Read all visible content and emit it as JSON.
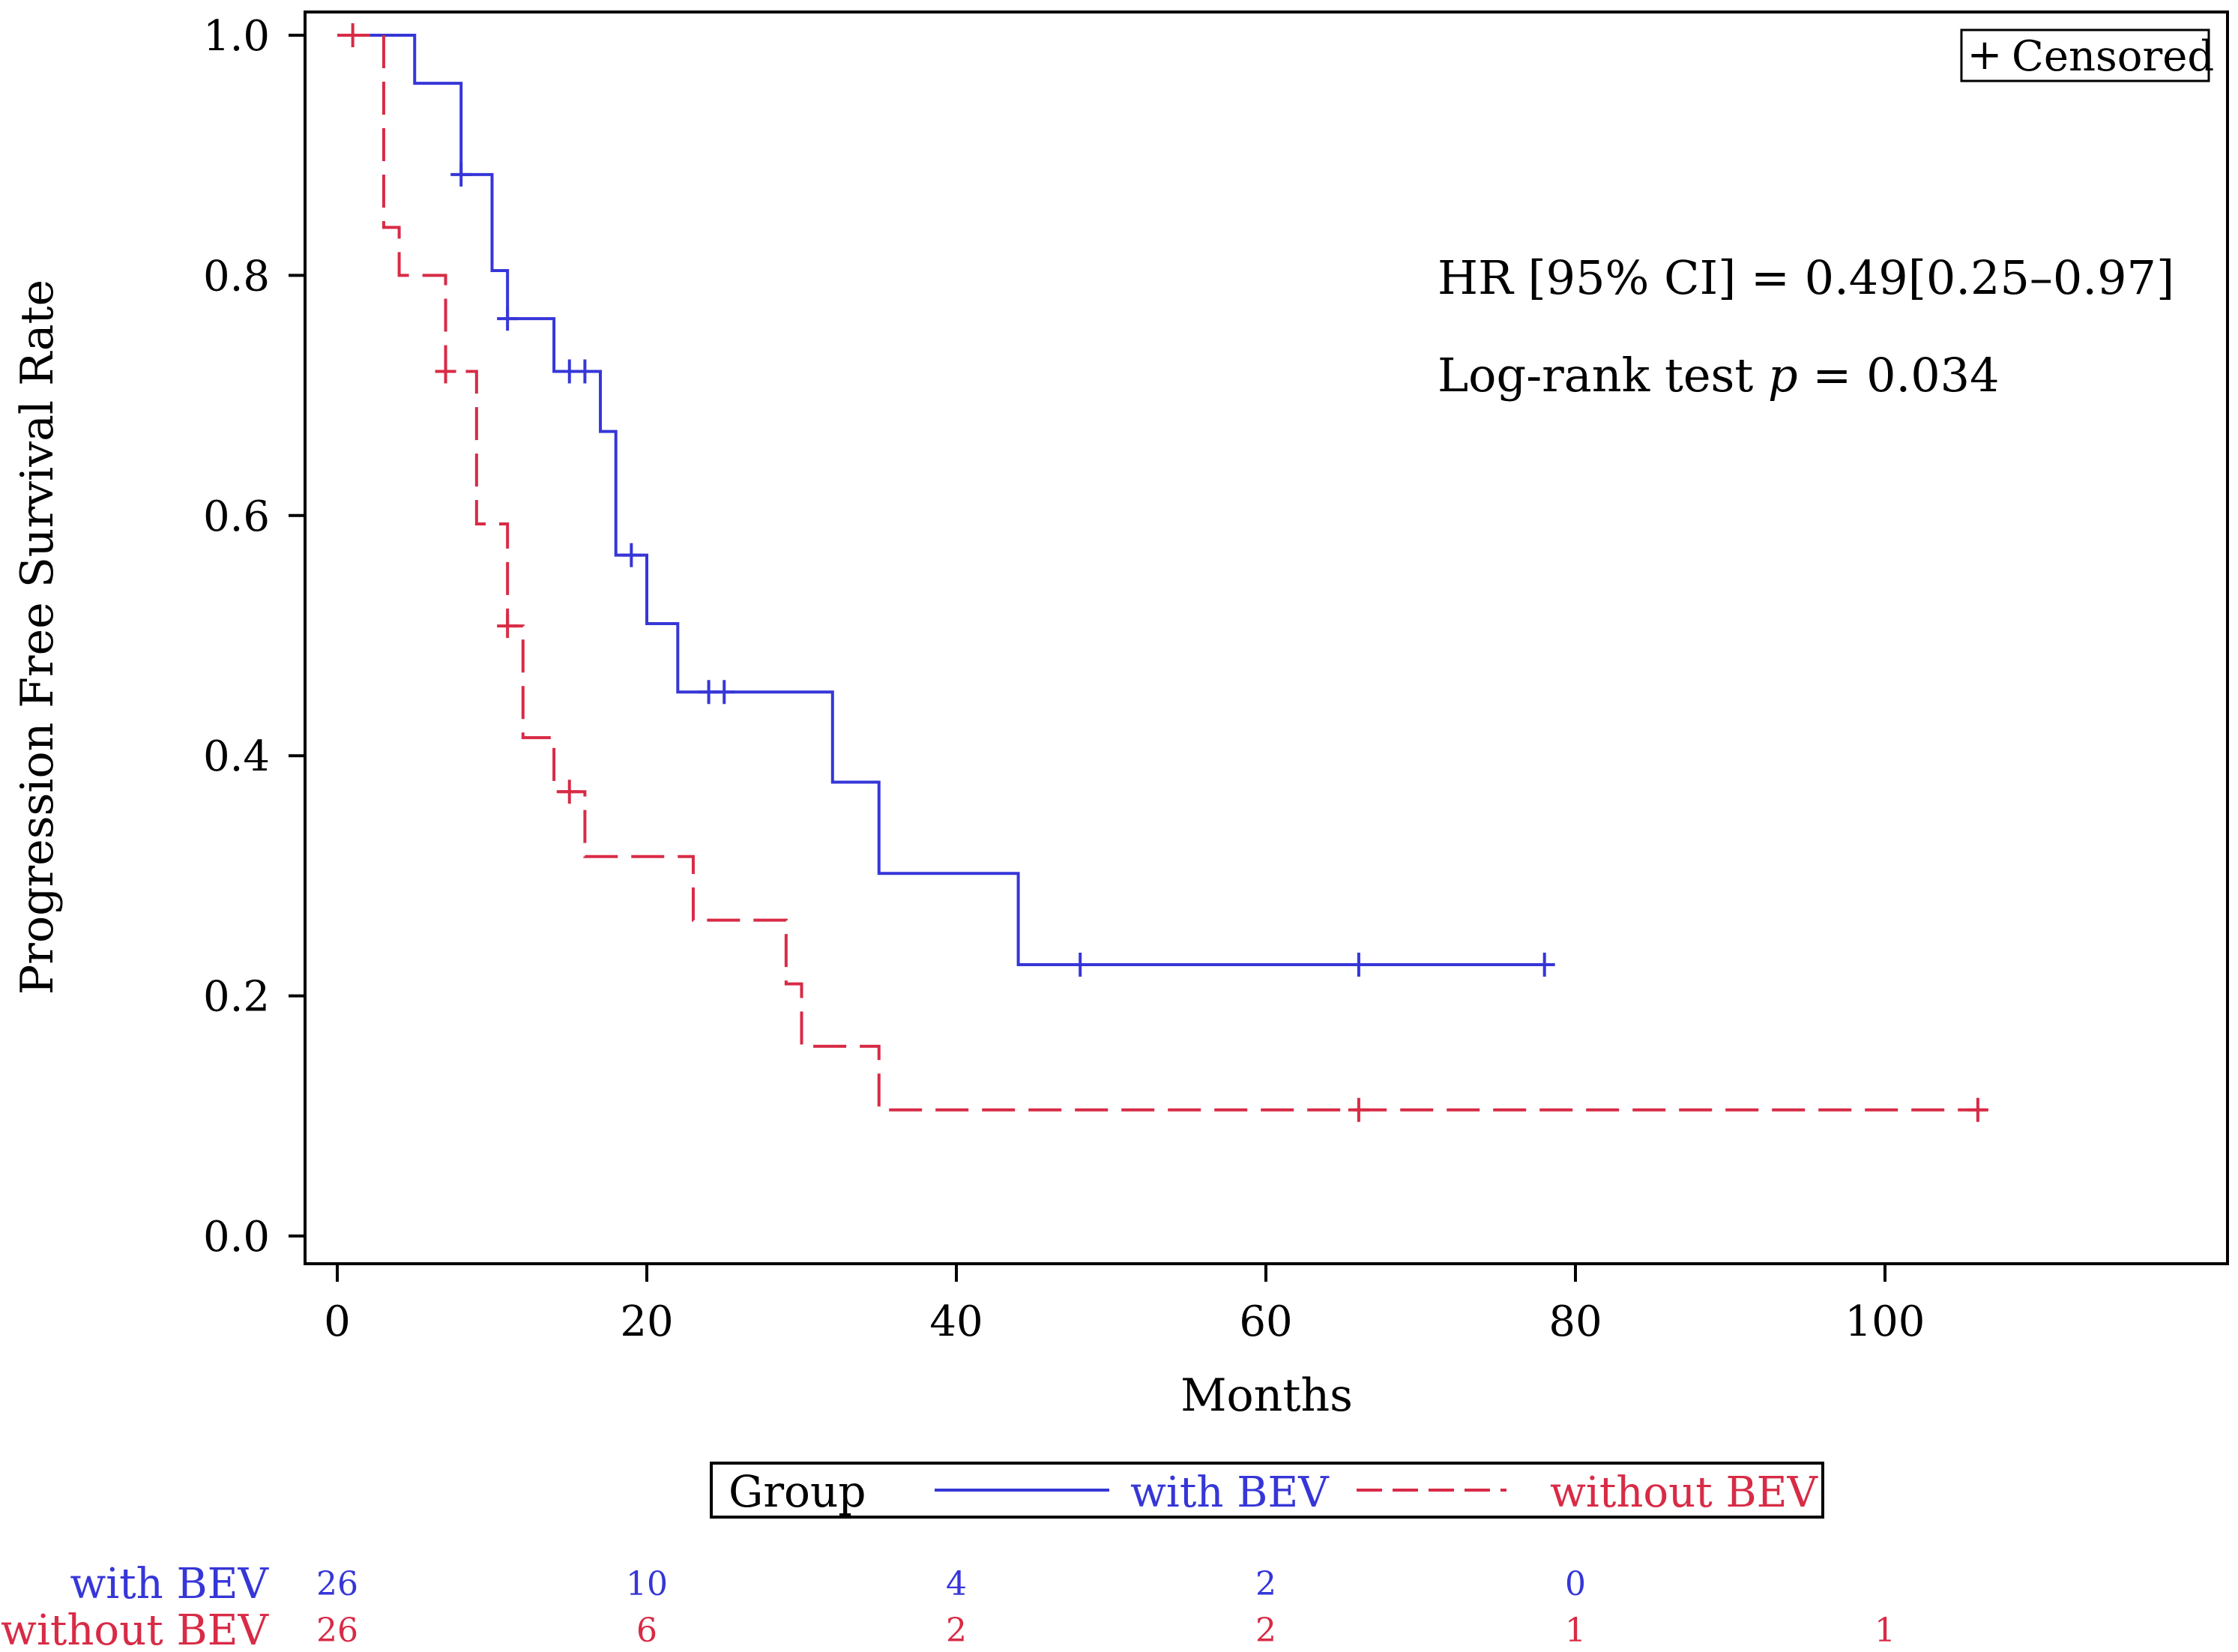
{
  "colors": {
    "with_bev": "#3636d8",
    "without_bev": "#d82b46",
    "axis": "#000000"
  },
  "censored_legend": {
    "symbol": "+",
    "label": "Censored"
  },
  "annotations": {
    "hr_text": "HR [95% CI] = 0.49[0.25–0.97]",
    "logrank_prefix": "Log-rank test ",
    "logrank_p": "p",
    "logrank_suffix": " = 0.034"
  },
  "legend": {
    "title": "Group",
    "entries": [
      "with BEV",
      "without BEV"
    ]
  },
  "at_risk": {
    "times": [
      0,
      20,
      40,
      60,
      80,
      100
    ],
    "rows": [
      {
        "label": "with BEV",
        "counts": [
          "26",
          "10",
          "4",
          "2",
          "0",
          ""
        ]
      },
      {
        "label": "without BEV",
        "counts": [
          "26",
          "6",
          "2",
          "2",
          "1",
          "1"
        ]
      }
    ]
  },
  "chart_data": {
    "type": "line",
    "subtype": "kaplan-meier-step",
    "title": "",
    "xlabel": "Months",
    "ylabel": "Progression Free Survival Rate",
    "xlim": [
      -2,
      122
    ],
    "ylim": [
      0,
      1.02
    ],
    "xticks": [
      0,
      20,
      40,
      60,
      80,
      100
    ],
    "xtick_labels": [
      "0",
      "20",
      "40",
      "60",
      "80",
      "100"
    ],
    "yticks": [
      0.0,
      0.2,
      0.4,
      0.6,
      0.8,
      1.0
    ],
    "ytick_labels": [
      "0.0",
      "0.2",
      "0.4",
      "0.6",
      "0.8",
      "1.0"
    ],
    "grid": false,
    "series": [
      {
        "name": "with BEV",
        "style": "solid",
        "steps": [
          [
            0,
            1.0
          ],
          [
            5,
            0.96
          ],
          [
            8,
            0.884
          ],
          [
            10,
            0.804
          ],
          [
            11,
            0.764
          ],
          [
            14,
            0.72
          ],
          [
            17,
            0.67
          ],
          [
            18,
            0.567
          ],
          [
            20,
            0.51
          ],
          [
            22,
            0.453
          ],
          [
            32,
            0.378
          ],
          [
            35,
            0.302
          ],
          [
            44,
            0.226
          ],
          [
            78.5,
            0.226
          ]
        ],
        "censored": [
          [
            8,
            0.884
          ],
          [
            11,
            0.764
          ],
          [
            15,
            0.72
          ],
          [
            16,
            0.72
          ],
          [
            19,
            0.567
          ],
          [
            24,
            0.453
          ],
          [
            25,
            0.453
          ],
          [
            48,
            0.226
          ],
          [
            66,
            0.226
          ],
          [
            78,
            0.226
          ]
        ]
      },
      {
        "name": "without BEV",
        "style": "dashed",
        "steps": [
          [
            0,
            1.0
          ],
          [
            3,
            0.84
          ],
          [
            4,
            0.8
          ],
          [
            7,
            0.72
          ],
          [
            9,
            0.593
          ],
          [
            11,
            0.508
          ],
          [
            12,
            0.415
          ],
          [
            14,
            0.37
          ],
          [
            16,
            0.316
          ],
          [
            23,
            0.263
          ],
          [
            29,
            0.21
          ],
          [
            30,
            0.158
          ],
          [
            35,
            0.105
          ],
          [
            106.5,
            0.105
          ]
        ],
        "censored": [
          [
            1,
            1.0
          ],
          [
            7,
            0.72
          ],
          [
            11,
            0.508
          ],
          [
            15,
            0.37
          ],
          [
            66,
            0.105
          ],
          [
            106,
            0.105
          ]
        ]
      }
    ],
    "legend": "bottom"
  }
}
